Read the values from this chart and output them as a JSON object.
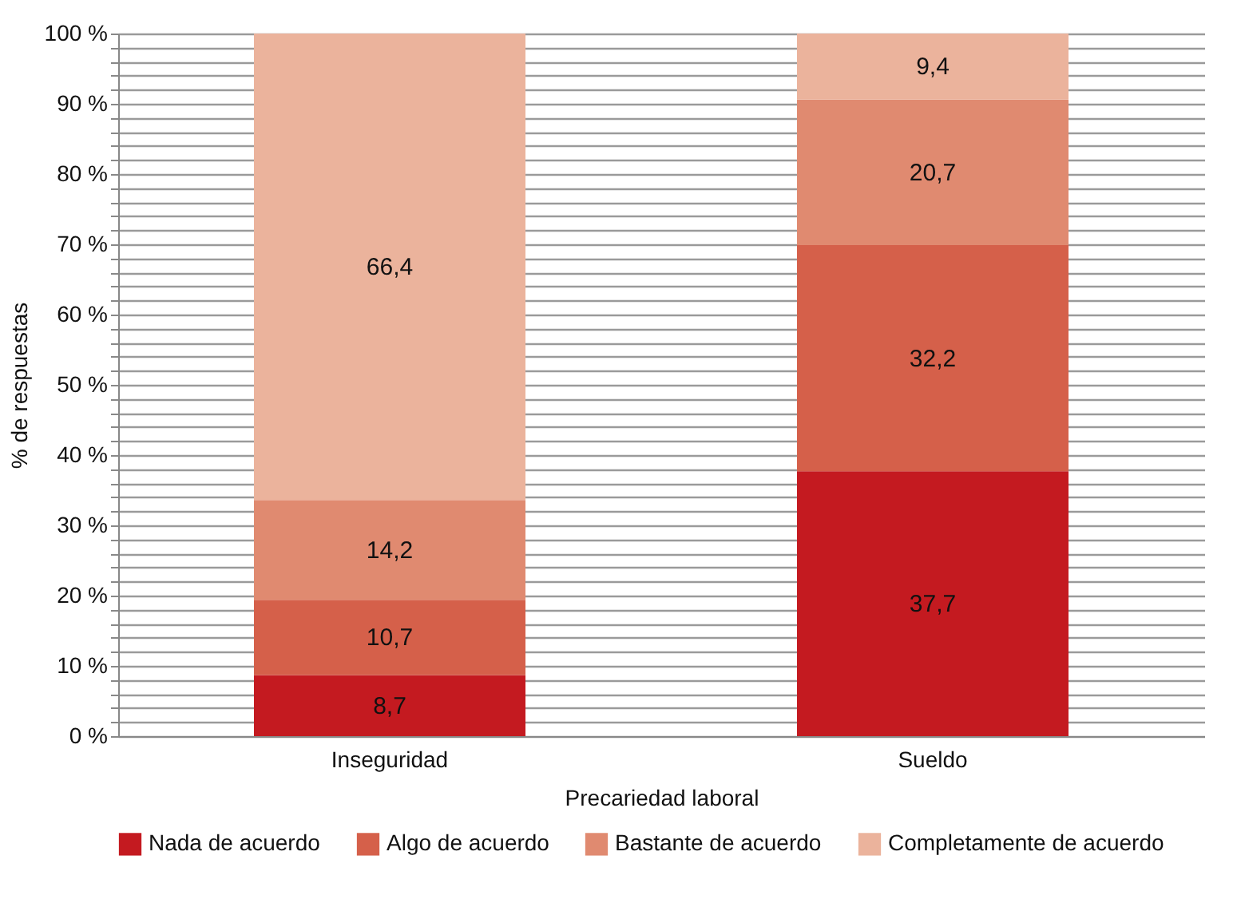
{
  "chart_data": {
    "type": "bar",
    "stacked": true,
    "xlabel": "Precariedad laboral",
    "ylabel": "% de respuestas",
    "categories": [
      "Inseguridad",
      "Sueldo"
    ],
    "series": [
      {
        "name": "Nada de acuerdo",
        "color": "#c41a20",
        "values": [
          8.7,
          37.7
        ],
        "value_labels": [
          "8,7",
          "37,7"
        ]
      },
      {
        "name": "Algo de acuerdo",
        "color": "#d5604a",
        "values": [
          10.7,
          32.2
        ],
        "value_labels": [
          "10,7",
          "32,2"
        ]
      },
      {
        "name": "Bastante de acuerdo",
        "color": "#e08a70",
        "values": [
          14.2,
          20.7
        ],
        "value_labels": [
          "14,2",
          "20,7"
        ]
      },
      {
        "name": "Completamente de acuerdo",
        "color": "#ebb39c",
        "values": [
          66.4,
          9.4
        ],
        "value_labels": [
          "66,4",
          "9,4"
        ]
      }
    ],
    "ylim": [
      0,
      100
    ],
    "yticks": [
      {
        "value": 0,
        "label": "0 %"
      },
      {
        "value": 2,
        "label": null
      },
      {
        "value": 4,
        "label": null
      },
      {
        "value": 6,
        "label": null
      },
      {
        "value": 8,
        "label": null
      },
      {
        "value": 10,
        "label": "10 %"
      },
      {
        "value": 12,
        "label": null
      },
      {
        "value": 14,
        "label": null
      },
      {
        "value": 16,
        "label": null
      },
      {
        "value": 18,
        "label": null
      },
      {
        "value": 20,
        "label": "20 %"
      },
      {
        "value": 22,
        "label": null
      },
      {
        "value": 24,
        "label": null
      },
      {
        "value": 26,
        "label": null
      },
      {
        "value": 28,
        "label": null
      },
      {
        "value": 30,
        "label": "30 %"
      },
      {
        "value": 32,
        "label": null
      },
      {
        "value": 34,
        "label": null
      },
      {
        "value": 36,
        "label": null
      },
      {
        "value": 38,
        "label": null
      },
      {
        "value": 40,
        "label": "40 %"
      },
      {
        "value": 42,
        "label": null
      },
      {
        "value": 44,
        "label": null
      },
      {
        "value": 46,
        "label": null
      },
      {
        "value": 48,
        "label": null
      },
      {
        "value": 50,
        "label": "50 %"
      },
      {
        "value": 52,
        "label": null
      },
      {
        "value": 54,
        "label": null
      },
      {
        "value": 56,
        "label": null
      },
      {
        "value": 58,
        "label": null
      },
      {
        "value": 60,
        "label": "60 %"
      },
      {
        "value": 62,
        "label": null
      },
      {
        "value": 64,
        "label": null
      },
      {
        "value": 66,
        "label": null
      },
      {
        "value": 68,
        "label": null
      },
      {
        "value": 70,
        "label": "70 %"
      },
      {
        "value": 72,
        "label": null
      },
      {
        "value": 74,
        "label": null
      },
      {
        "value": 76,
        "label": null
      },
      {
        "value": 78,
        "label": null
      },
      {
        "value": 80,
        "label": "80 %"
      },
      {
        "value": 82,
        "label": null
      },
      {
        "value": 84,
        "label": null
      },
      {
        "value": 86,
        "label": null
      },
      {
        "value": 88,
        "label": null
      },
      {
        "value": 90,
        "label": "90 %"
      },
      {
        "value": 92,
        "label": null
      },
      {
        "value": 94,
        "label": null
      },
      {
        "value": 96,
        "label": null
      },
      {
        "value": 98,
        "label": null
      },
      {
        "value": 100,
        "label": "100 %"
      }
    ],
    "grid": "y",
    "legend": "bottom"
  }
}
